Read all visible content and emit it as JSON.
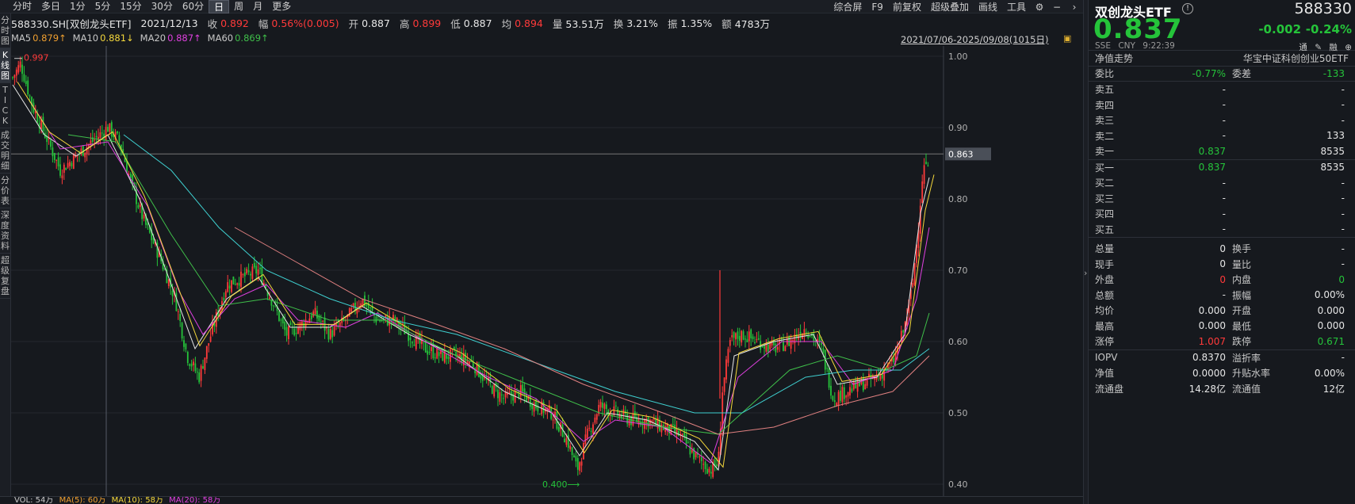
{
  "left_rail": [
    "分时图",
    "K线图",
    "TICK",
    "成交明细",
    "分价表",
    "深度资料",
    "超级复盘"
  ],
  "toolbar": {
    "periods": [
      "分时",
      "多日",
      "1分",
      "5分",
      "15分",
      "30分",
      "60分",
      "日",
      "周",
      "月",
      "更多"
    ],
    "active_period": "日",
    "right": [
      "综合屏",
      "F9",
      "前复权",
      "超级叠加",
      "画线",
      "工具"
    ]
  },
  "info": {
    "symbol": "588330.SH[双创龙头ETF]",
    "date": "2021/12/13",
    "close_label": "收",
    "close": "0.892",
    "amp_label": "幅",
    "amp": "0.56%(0.005)",
    "open_label": "开",
    "open": "0.887",
    "high_label": "高",
    "high": "0.899",
    "low_label": "低",
    "low": "0.887",
    "avg_label": "均",
    "avg": "0.894",
    "vol_label": "量",
    "vol": "53.51万",
    "turnover_label": "换",
    "turnover": "3.21%",
    "swing_label": "振",
    "swing": "1.35%",
    "amount_label": "额",
    "amount": "4783万"
  },
  "ma": {
    "ma5_label": "MA5",
    "ma5": "0.879↑",
    "ma10_label": "MA10",
    "ma10": "0.881↓",
    "ma20_label": "MA20",
    "ma20": "0.887↑",
    "ma60_label": "MA60",
    "ma60": "0.869↑",
    "colors": {
      "ma5": "#e6e6e6",
      "ma10": "#f5d83b",
      "ma20": "#e040e0",
      "ma60": "#3fbf4a"
    }
  },
  "range_label": "2021/07/06-2025/09/08(1015日)",
  "volume_bar": {
    "label": "VOL: 54万",
    "ma5": "MA(5): 60万",
    "ma10": "MA(10): 58万",
    "ma20": "MA(20): 58万"
  },
  "chart_data": {
    "type": "candlestick",
    "y_ticks": [
      "1.00",
      "0.90",
      "0.80",
      "0.70",
      "0.60",
      "0.50",
      "0.40"
    ],
    "ylim": [
      0.39,
      1.01
    ],
    "crosshair_value": "0.863",
    "max_label": "0.997",
    "min_label": "0.400",
    "price_series": [
      [
        0,
        0.97
      ],
      [
        10,
        0.99
      ],
      [
        25,
        0.93
      ],
      [
        45,
        0.88
      ],
      [
        60,
        0.84
      ],
      [
        80,
        0.86
      ],
      [
        100,
        0.88
      ],
      [
        120,
        0.9
      ],
      [
        135,
        0.88
      ],
      [
        150,
        0.82
      ],
      [
        165,
        0.77
      ],
      [
        185,
        0.72
      ],
      [
        205,
        0.66
      ],
      [
        220,
        0.58
      ],
      [
        235,
        0.55
      ],
      [
        250,
        0.61
      ],
      [
        270,
        0.68
      ],
      [
        290,
        0.69
      ],
      [
        310,
        0.7
      ],
      [
        330,
        0.65
      ],
      [
        345,
        0.61
      ],
      [
        360,
        0.62
      ],
      [
        380,
        0.64
      ],
      [
        400,
        0.61
      ],
      [
        420,
        0.63
      ],
      [
        440,
        0.66
      ],
      [
        460,
        0.63
      ],
      [
        480,
        0.63
      ],
      [
        500,
        0.61
      ],
      [
        520,
        0.59
      ],
      [
        540,
        0.58
      ],
      [
        560,
        0.58
      ],
      [
        580,
        0.57
      ],
      [
        600,
        0.54
      ],
      [
        620,
        0.52
      ],
      [
        640,
        0.53
      ],
      [
        660,
        0.51
      ],
      [
        680,
        0.5
      ],
      [
        700,
        0.46
      ],
      [
        712,
        0.42
      ],
      [
        725,
        0.47
      ],
      [
        740,
        0.51
      ],
      [
        760,
        0.5
      ],
      [
        780,
        0.49
      ],
      [
        800,
        0.49
      ],
      [
        820,
        0.48
      ],
      [
        840,
        0.47
      ],
      [
        860,
        0.44
      ],
      [
        880,
        0.42
      ],
      [
        890,
        0.43
      ],
      [
        895,
        0.53
      ],
      [
        905,
        0.6
      ],
      [
        920,
        0.61
      ],
      [
        940,
        0.6
      ],
      [
        960,
        0.59
      ],
      [
        980,
        0.6
      ],
      [
        1000,
        0.62
      ],
      [
        1020,
        0.59
      ],
      [
        1035,
        0.52
      ],
      [
        1050,
        0.53
      ],
      [
        1070,
        0.54
      ],
      [
        1090,
        0.55
      ],
      [
        1110,
        0.57
      ],
      [
        1125,
        0.62
      ],
      [
        1135,
        0.68
      ],
      [
        1142,
        0.76
      ],
      [
        1148,
        0.84
      ],
      [
        1152,
        0.85
      ],
      [
        1156,
        0.83
      ]
    ],
    "ma_lines": {
      "ma5": [
        [
          0,
          0.96
        ],
        [
          40,
          0.89
        ],
        [
          80,
          0.86
        ],
        [
          120,
          0.89
        ],
        [
          160,
          0.8
        ],
        [
          200,
          0.68
        ],
        [
          230,
          0.59
        ],
        [
          270,
          0.66
        ],
        [
          310,
          0.69
        ],
        [
          350,
          0.62
        ],
        [
          400,
          0.62
        ],
        [
          440,
          0.65
        ],
        [
          500,
          0.61
        ],
        [
          560,
          0.58
        ],
        [
          620,
          0.53
        ],
        [
          680,
          0.5
        ],
        [
          715,
          0.44
        ],
        [
          750,
          0.5
        ],
        [
          800,
          0.49
        ],
        [
          860,
          0.46
        ],
        [
          890,
          0.42
        ],
        [
          910,
          0.58
        ],
        [
          960,
          0.6
        ],
        [
          1010,
          0.61
        ],
        [
          1040,
          0.54
        ],
        [
          1090,
          0.55
        ],
        [
          1125,
          0.61
        ],
        [
          1145,
          0.78
        ],
        [
          1156,
          0.83
        ]
      ],
      "ma20": [
        [
          20,
          0.94
        ],
        [
          60,
          0.87
        ],
        [
          120,
          0.88
        ],
        [
          170,
          0.79
        ],
        [
          210,
          0.67
        ],
        [
          240,
          0.61
        ],
        [
          280,
          0.66
        ],
        [
          320,
          0.68
        ],
        [
          360,
          0.63
        ],
        [
          420,
          0.62
        ],
        [
          460,
          0.64
        ],
        [
          520,
          0.6
        ],
        [
          600,
          0.55
        ],
        [
          660,
          0.52
        ],
        [
          720,
          0.46
        ],
        [
          760,
          0.49
        ],
        [
          820,
          0.48
        ],
        [
          880,
          0.43
        ],
        [
          915,
          0.55
        ],
        [
          970,
          0.6
        ],
        [
          1020,
          0.6
        ],
        [
          1060,
          0.54
        ],
        [
          1110,
          0.56
        ],
        [
          1140,
          0.66
        ],
        [
          1156,
          0.76
        ]
      ],
      "ma60": [
        [
          70,
          0.89
        ],
        [
          130,
          0.88
        ],
        [
          200,
          0.75
        ],
        [
          260,
          0.65
        ],
        [
          320,
          0.66
        ],
        [
          400,
          0.63
        ],
        [
          470,
          0.63
        ],
        [
          560,
          0.58
        ],
        [
          650,
          0.54
        ],
        [
          740,
          0.5
        ],
        [
          820,
          0.48
        ],
        [
          890,
          0.47
        ],
        [
          920,
          0.5
        ],
        [
          980,
          0.56
        ],
        [
          1040,
          0.58
        ],
        [
          1100,
          0.56
        ],
        [
          1140,
          0.58
        ],
        [
          1156,
          0.64
        ]
      ],
      "ma120": [
        [
          140,
          0.89
        ],
        [
          200,
          0.84
        ],
        [
          260,
          0.76
        ],
        [
          320,
          0.7
        ],
        [
          400,
          0.66
        ],
        [
          480,
          0.63
        ],
        [
          560,
          0.61
        ],
        [
          660,
          0.57
        ],
        [
          760,
          0.53
        ],
        [
          860,
          0.5
        ],
        [
          920,
          0.5
        ],
        [
          1000,
          0.55
        ],
        [
          1060,
          0.56
        ],
        [
          1120,
          0.56
        ],
        [
          1156,
          0.59
        ]
      ],
      "ma250": [
        [
          280,
          0.76
        ],
        [
          360,
          0.71
        ],
        [
          440,
          0.66
        ],
        [
          520,
          0.63
        ],
        [
          620,
          0.59
        ],
        [
          720,
          0.54
        ],
        [
          820,
          0.5
        ],
        [
          890,
          0.47
        ],
        [
          960,
          0.48
        ],
        [
          1040,
          0.51
        ],
        [
          1110,
          0.53
        ],
        [
          1156,
          0.58
        ]
      ]
    },
    "colors": {
      "up": "#ff3a3a",
      "down": "#25c43a",
      "ma120": "#3fd0d0",
      "ma250": "#e08080",
      "grid": "#24282f",
      "axis": "#b0b0b0"
    }
  },
  "panel": {
    "name": "双创龙头ETF",
    "code": "588330",
    "price": "0.837",
    "change": "-0.002",
    "pct": "-0.24%",
    "market": "SSE",
    "currency": "CNY",
    "time": "9:22:39",
    "icons": [
      "通",
      "融"
    ],
    "trend_label": "净值走势",
    "index_name": "华宝中证科创创业50ETF",
    "weibi_label": "委比",
    "weibi": "-0.77%",
    "weicha_label": "委差",
    "weicha": "-133",
    "asks": [
      {
        "label": "卖五",
        "price": "-",
        "vol": "-"
      },
      {
        "label": "卖四",
        "price": "-",
        "vol": "-"
      },
      {
        "label": "卖三",
        "price": "-",
        "vol": "-"
      },
      {
        "label": "卖二",
        "price": "-",
        "vol": "133"
      },
      {
        "label": "卖一",
        "price": "0.837",
        "vol": "8535"
      }
    ],
    "bids": [
      {
        "label": "买一",
        "price": "0.837",
        "vol": "8535"
      },
      {
        "label": "买二",
        "price": "-",
        "vol": "-"
      },
      {
        "label": "买三",
        "price": "-",
        "vol": "-"
      },
      {
        "label": "买四",
        "price": "-",
        "vol": "-"
      },
      {
        "label": "买五",
        "price": "-",
        "vol": "-"
      }
    ],
    "stats": [
      {
        "l1": "总量",
        "v1": "0",
        "l2": "换手",
        "v2": "-",
        "c1": "white",
        "c2": "white"
      },
      {
        "l1": "现手",
        "v1": "0",
        "l2": "量比",
        "v2": "-",
        "c1": "white",
        "c2": "white"
      },
      {
        "l1": "外盘",
        "v1": "0",
        "l2": "内盘",
        "v2": "0",
        "c1": "red",
        "c2": "green"
      },
      {
        "l1": "总额",
        "v1": "-",
        "l2": "振幅",
        "v2": "0.00%",
        "c1": "white",
        "c2": "white"
      },
      {
        "l1": "均价",
        "v1": "0.000",
        "l2": "开盘",
        "v2": "0.000",
        "c1": "white",
        "c2": "white"
      },
      {
        "l1": "最高",
        "v1": "0.000",
        "l2": "最低",
        "v2": "0.000",
        "c1": "white",
        "c2": "white"
      },
      {
        "l1": "涨停",
        "v1": "1.007",
        "l2": "跌停",
        "v2": "0.671",
        "c1": "red",
        "c2": "green"
      }
    ],
    "fund": [
      {
        "l1": "IOPV",
        "v1": "0.8370",
        "l2": "溢折率",
        "v2": "-"
      },
      {
        "l1": "净值",
        "v1": "0.0000",
        "l2": "升贴水率",
        "v2": "0.00%"
      },
      {
        "l1": "流通盘",
        "v1": "14.28亿",
        "l2": "流通值",
        "v2": "12亿"
      }
    ]
  }
}
